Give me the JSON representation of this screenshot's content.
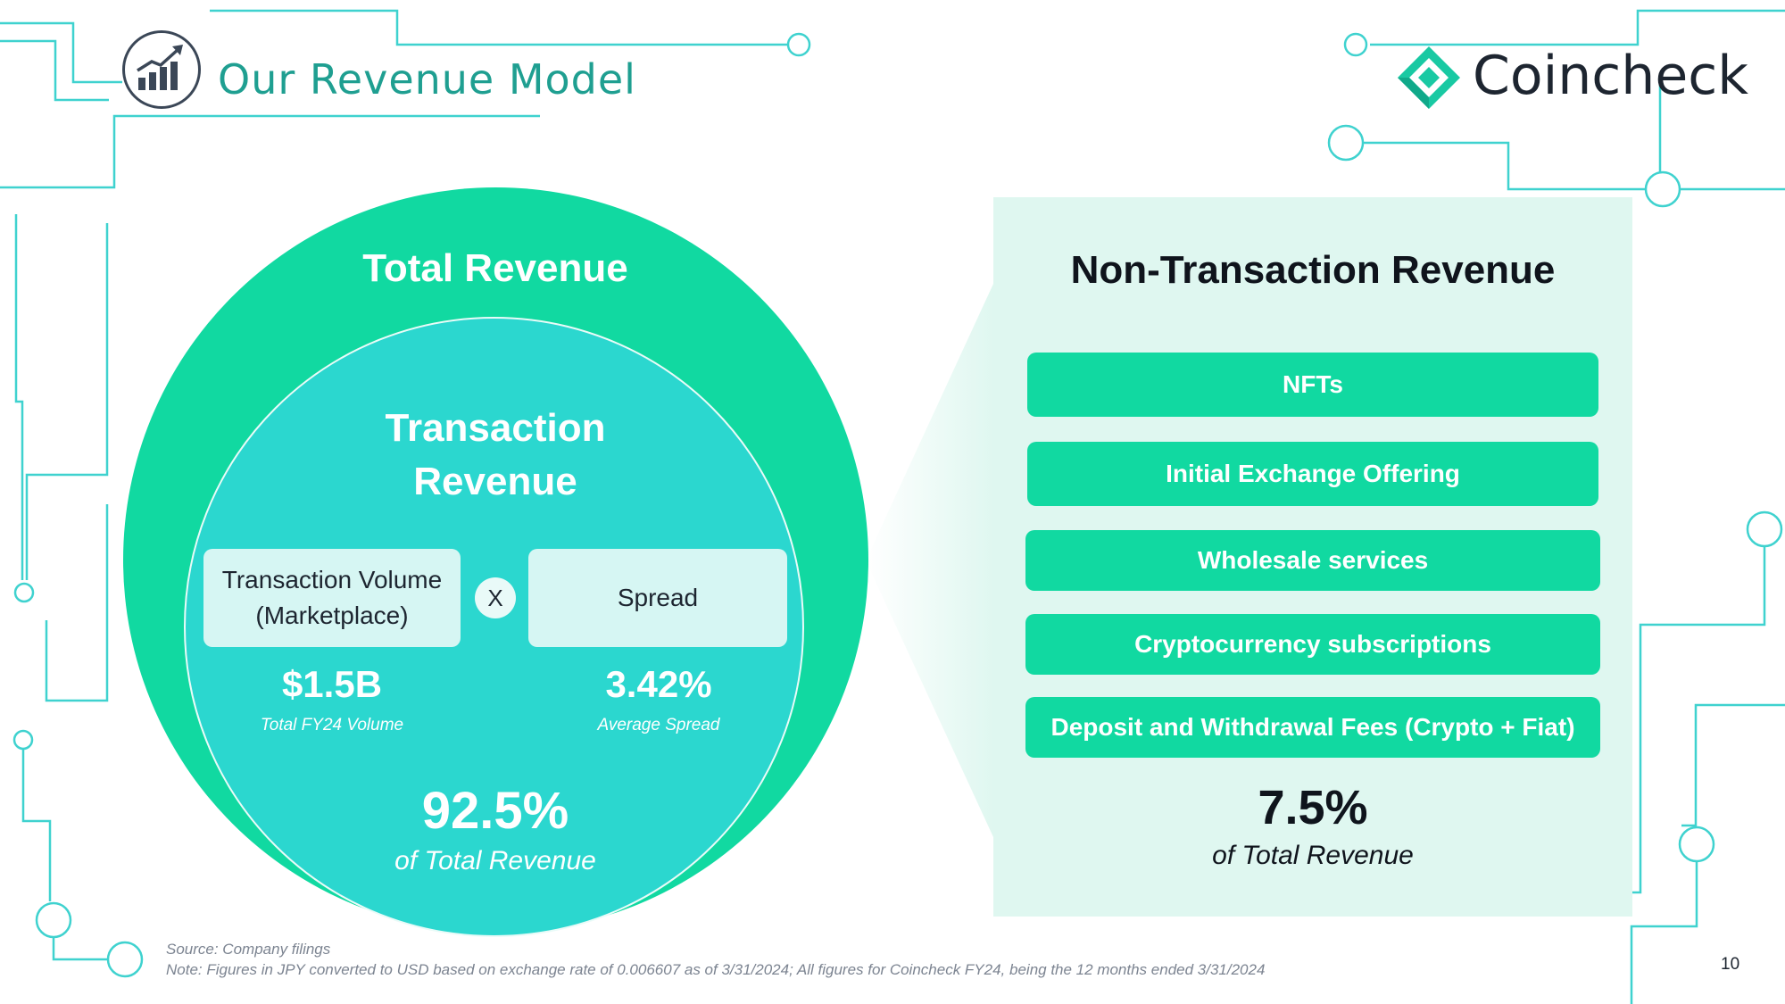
{
  "header": {
    "title": "Our Revenue Model"
  },
  "logo": {
    "text": "Coincheck"
  },
  "total": {
    "title": "Total Revenue"
  },
  "transaction": {
    "title_line1": "Transaction",
    "title_line2": "Revenue",
    "volume_label_line1": "Transaction Volume",
    "volume_label_line2": "(Marketplace)",
    "times": "X",
    "spread_label": "Spread",
    "volume_value": "$1.5B",
    "volume_caption": "Total FY24 Volume",
    "spread_value": "3.42%",
    "spread_caption": "Average Spread",
    "share_value": "92.5%",
    "share_caption": "of Total Revenue"
  },
  "non_transaction": {
    "title": "Non-Transaction Revenue",
    "items": [
      "NFTs",
      "Initial Exchange Offering",
      "Wholesale services",
      "Cryptocurrency subscriptions",
      "Deposit and Withdrawal Fees (Crypto + Fiat)"
    ],
    "share_value": "7.5%",
    "share_caption": "of Total Revenue"
  },
  "footer": {
    "source": "Source: Company filings",
    "note": "Note: Figures in JPY converted to USD based on exchange rate of 0.006607 as of 3/31/2024; All figures for Coincheck FY24, being the 12 months ended 3/31/2024",
    "page_number": "10"
  },
  "colors": {
    "brand_green": "#11d9a1",
    "teal": "#2bd7cf",
    "circuit": "#3fd2cf",
    "panel": "#dff7f0"
  }
}
